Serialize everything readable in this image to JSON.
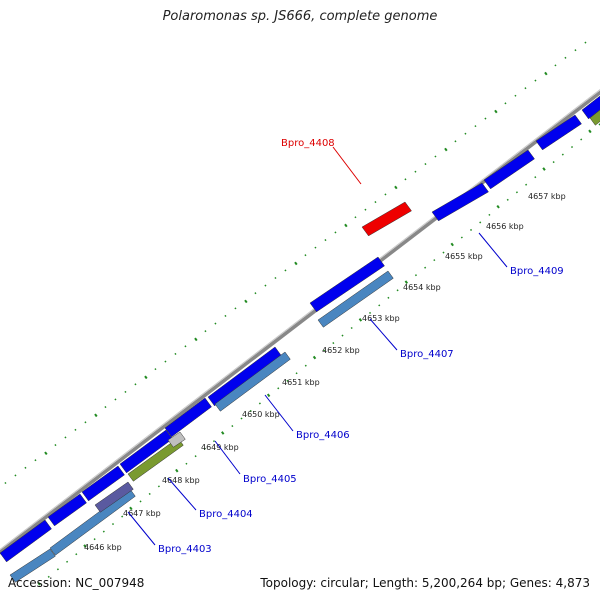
{
  "title": "Polaromonas sp. JS666, complete genome",
  "footer": {
    "accession": "Accession: NC_007948",
    "summary": "Topology: circular; Length: 5,200,264 bp; Genes: 4,873"
  },
  "colors": {
    "forward_gene": "#0000ee",
    "reverse_gene": "#4a86c0",
    "highlight_gene": "#ee0000",
    "backbone": "#888888",
    "ticks": "#228b22",
    "label_default": "#0000cc",
    "label_highlight": "#dd0000"
  },
  "ticks": [
    {
      "label": "4646 kbp"
    },
    {
      "label": "4647 kbp"
    },
    {
      "label": "4648 kbp"
    },
    {
      "label": "4649 kbp"
    },
    {
      "label": "4650 kbp"
    },
    {
      "label": "4651 kbp"
    },
    {
      "label": "4652 kbp"
    },
    {
      "label": "4653 kbp"
    },
    {
      "label": "4654 kbp"
    },
    {
      "label": "4655 kbp"
    },
    {
      "label": "4656 kbp"
    },
    {
      "label": "4657 kbp"
    }
  ],
  "labels": [
    {
      "text": "Bpro_4403",
      "highlight": false
    },
    {
      "text": "Bpro_4404",
      "highlight": false
    },
    {
      "text": "Bpro_4405",
      "highlight": false
    },
    {
      "text": "Bpro_4406",
      "highlight": false
    },
    {
      "text": "Bpro_4407",
      "highlight": false
    },
    {
      "text": "Bpro_4408",
      "highlight": true
    },
    {
      "text": "Bpro_4409",
      "highlight": false
    }
  ]
}
